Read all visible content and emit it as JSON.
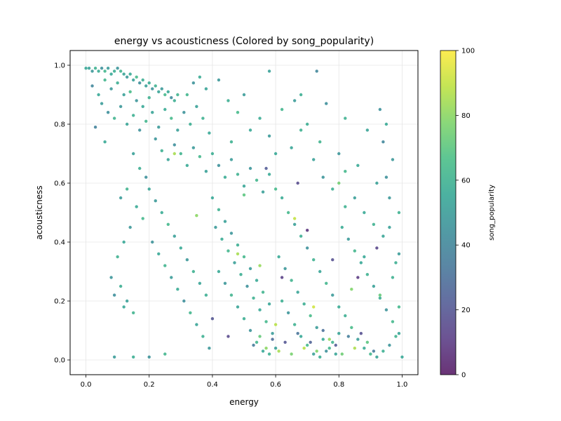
{
  "chart_data": {
    "type": "scatter",
    "title": "energy vs acousticness (Colored by song_popularity)",
    "xlabel": "energy",
    "ylabel": "acousticness",
    "xlim": [
      -0.05,
      1.05
    ],
    "ylim": [
      -0.05,
      1.05
    ],
    "xticks": [
      0.0,
      0.2,
      0.4,
      0.6,
      0.8,
      1.0
    ],
    "yticks": [
      0.0,
      0.2,
      0.4,
      0.6,
      0.8,
      1.0
    ],
    "xtick_labels": [
      "0.0",
      "0.2",
      "0.4",
      "0.6",
      "0.8",
      "1.0"
    ],
    "ytick_labels": [
      "0.0",
      "0.2",
      "0.4",
      "0.6",
      "0.8",
      "1.0"
    ],
    "grid": true,
    "colorbar": {
      "label": "song_popularity",
      "range": [
        0,
        100
      ],
      "ticks": [
        0,
        20,
        40,
        60,
        80,
        100
      ],
      "tick_labels": [
        "0",
        "20",
        "40",
        "60",
        "80",
        "100"
      ],
      "colormap": "viridis",
      "colors": [
        "#440154",
        "#482878",
        "#3e4989",
        "#31688e",
        "#26828e",
        "#1f9e89",
        "#35b779",
        "#6ece58",
        "#b5de2b",
        "#fde725"
      ]
    },
    "marker_alpha": 0.8,
    "points": [
      [
        0.0,
        0.99,
        55
      ],
      [
        0.01,
        0.99,
        52
      ],
      [
        0.02,
        0.98,
        48
      ],
      [
        0.03,
        0.99,
        60
      ],
      [
        0.04,
        0.98,
        57
      ],
      [
        0.05,
        0.99,
        45
      ],
      [
        0.06,
        0.98,
        62
      ],
      [
        0.07,
        0.99,
        50
      ],
      [
        0.08,
        0.97,
        55
      ],
      [
        0.09,
        0.98,
        58
      ],
      [
        0.1,
        0.99,
        47
      ],
      [
        0.11,
        0.98,
        61
      ],
      [
        0.12,
        0.97,
        53
      ],
      [
        0.13,
        0.96,
        49
      ],
      [
        0.14,
        0.97,
        56
      ],
      [
        0.15,
        0.95,
        52
      ],
      [
        0.16,
        0.96,
        64
      ],
      [
        0.17,
        0.94,
        44
      ],
      [
        0.18,
        0.95,
        58
      ],
      [
        0.19,
        0.93,
        51
      ],
      [
        0.2,
        0.94,
        57
      ],
      [
        0.21,
        0.92,
        46
      ],
      [
        0.22,
        0.93,
        60
      ],
      [
        0.23,
        0.91,
        53
      ],
      [
        0.24,
        0.92,
        49
      ],
      [
        0.25,
        0.9,
        63
      ],
      [
        0.26,
        0.91,
        55
      ],
      [
        0.27,
        0.89,
        42
      ],
      [
        0.28,
        0.88,
        58
      ],
      [
        0.29,
        0.9,
        61
      ],
      [
        0.02,
        0.93,
        40
      ],
      [
        0.04,
        0.9,
        55
      ],
      [
        0.06,
        0.95,
        62
      ],
      [
        0.08,
        0.92,
        48
      ],
      [
        0.1,
        0.94,
        58
      ],
      [
        0.12,
        0.9,
        52
      ],
      [
        0.14,
        0.91,
        65
      ],
      [
        0.16,
        0.88,
        47
      ],
      [
        0.18,
        0.86,
        55
      ],
      [
        0.2,
        0.89,
        60
      ],
      [
        0.05,
        0.87,
        50
      ],
      [
        0.07,
        0.84,
        44
      ],
      [
        0.03,
        0.79,
        38
      ],
      [
        0.06,
        0.74,
        56
      ],
      [
        0.09,
        0.82,
        61
      ],
      [
        0.11,
        0.86,
        48
      ],
      [
        0.13,
        0.8,
        54
      ],
      [
        0.15,
        0.83,
        59
      ],
      [
        0.17,
        0.78,
        45
      ],
      [
        0.19,
        0.81,
        62
      ],
      [
        0.21,
        0.84,
        53
      ],
      [
        0.23,
        0.79,
        49
      ],
      [
        0.25,
        0.85,
        57
      ],
      [
        0.27,
        0.82,
        64
      ],
      [
        0.29,
        0.78,
        51
      ],
      [
        0.31,
        0.84,
        46
      ],
      [
        0.33,
        0.8,
        58
      ],
      [
        0.35,
        0.86,
        52
      ],
      [
        0.37,
        0.82,
        60
      ],
      [
        0.39,
        0.77,
        55
      ],
      [
        0.22,
        0.75,
        47
      ],
      [
        0.24,
        0.71,
        59
      ],
      [
        0.26,
        0.68,
        53
      ],
      [
        0.28,
        0.73,
        44
      ],
      [
        0.3,
        0.7,
        61
      ],
      [
        0.32,
        0.66,
        56
      ],
      [
        0.34,
        0.72,
        49
      ],
      [
        0.36,
        0.69,
        63
      ],
      [
        0.38,
        0.64,
        52
      ],
      [
        0.4,
        0.7,
        58
      ],
      [
        0.42,
        0.66,
        45
      ],
      [
        0.44,
        0.62,
        57
      ],
      [
        0.46,
        0.68,
        50
      ],
      [
        0.48,
        0.63,
        60
      ],
      [
        0.5,
        0.59,
        54
      ],
      [
        0.52,
        0.65,
        47
      ],
      [
        0.54,
        0.61,
        62
      ],
      [
        0.56,
        0.57,
        51
      ],
      [
        0.58,
        0.63,
        56
      ],
      [
        0.6,
        0.58,
        64
      ],
      [
        0.15,
        0.7,
        52
      ],
      [
        0.17,
        0.65,
        58
      ],
      [
        0.19,
        0.62,
        45
      ],
      [
        0.13,
        0.58,
        61
      ],
      [
        0.11,
        0.55,
        50
      ],
      [
        0.16,
        0.52,
        56
      ],
      [
        0.18,
        0.48,
        63
      ],
      [
        0.14,
        0.45,
        48
      ],
      [
        0.12,
        0.4,
        55
      ],
      [
        0.1,
        0.35,
        60
      ],
      [
        0.08,
        0.28,
        47
      ],
      [
        0.11,
        0.25,
        58
      ],
      [
        0.13,
        0.2,
        52
      ],
      [
        0.09,
        0.22,
        44
      ],
      [
        0.15,
        0.16,
        61
      ],
      [
        0.12,
        0.18,
        55
      ],
      [
        0.09,
        0.01,
        50
      ],
      [
        0.15,
        0.01,
        58
      ],
      [
        0.2,
        0.01,
        46
      ],
      [
        0.25,
        0.02,
        62
      ],
      [
        0.2,
        0.58,
        54
      ],
      [
        0.22,
        0.54,
        49
      ],
      [
        0.24,
        0.5,
        57
      ],
      [
        0.26,
        0.46,
        63
      ],
      [
        0.28,
        0.42,
        51
      ],
      [
        0.3,
        0.38,
        56
      ],
      [
        0.32,
        0.34,
        48
      ],
      [
        0.34,
        0.3,
        60
      ],
      [
        0.36,
        0.26,
        53
      ],
      [
        0.38,
        0.22,
        58
      ],
      [
        0.21,
        0.4,
        46
      ],
      [
        0.23,
        0.36,
        55
      ],
      [
        0.25,
        0.32,
        61
      ],
      [
        0.27,
        0.28,
        50
      ],
      [
        0.29,
        0.24,
        57
      ],
      [
        0.31,
        0.2,
        44
      ],
      [
        0.33,
        0.16,
        62
      ],
      [
        0.35,
        0.12,
        53
      ],
      [
        0.37,
        0.08,
        59
      ],
      [
        0.39,
        0.04,
        48
      ],
      [
        0.4,
        0.55,
        55
      ],
      [
        0.42,
        0.51,
        60
      ],
      [
        0.44,
        0.47,
        52
      ],
      [
        0.46,
        0.43,
        47
      ],
      [
        0.48,
        0.39,
        58
      ],
      [
        0.5,
        0.35,
        63
      ],
      [
        0.52,
        0.31,
        50
      ],
      [
        0.54,
        0.27,
        56
      ],
      [
        0.56,
        0.23,
        61
      ],
      [
        0.58,
        0.19,
        54
      ],
      [
        0.41,
        0.45,
        49
      ],
      [
        0.43,
        0.41,
        57
      ],
      [
        0.45,
        0.37,
        62
      ],
      [
        0.47,
        0.33,
        51
      ],
      [
        0.49,
        0.29,
        58
      ],
      [
        0.51,
        0.25,
        45
      ],
      [
        0.53,
        0.21,
        60
      ],
      [
        0.55,
        0.17,
        55
      ],
      [
        0.57,
        0.13,
        63
      ],
      [
        0.59,
        0.09,
        50
      ],
      [
        0.42,
        0.3,
        56
      ],
      [
        0.44,
        0.26,
        48
      ],
      [
        0.46,
        0.22,
        61
      ],
      [
        0.48,
        0.18,
        53
      ],
      [
        0.5,
        0.14,
        58
      ],
      [
        0.52,
        0.1,
        46
      ],
      [
        0.54,
        0.06,
        62
      ],
      [
        0.56,
        0.03,
        55
      ],
      [
        0.58,
        0.02,
        59
      ],
      [
        0.6,
        0.04,
        52
      ],
      [
        0.62,
        0.55,
        57
      ],
      [
        0.64,
        0.5,
        63
      ],
      [
        0.66,
        0.46,
        51
      ],
      [
        0.68,
        0.42,
        58
      ],
      [
        0.7,
        0.38,
        45
      ],
      [
        0.72,
        0.34,
        60
      ],
      [
        0.74,
        0.3,
        54
      ],
      [
        0.76,
        0.26,
        62
      ],
      [
        0.78,
        0.22,
        49
      ],
      [
        0.8,
        0.18,
        57
      ],
      [
        0.61,
        0.35,
        56
      ],
      [
        0.63,
        0.31,
        48
      ],
      [
        0.65,
        0.27,
        61
      ],
      [
        0.67,
        0.23,
        53
      ],
      [
        0.69,
        0.19,
        58
      ],
      [
        0.71,
        0.15,
        65
      ],
      [
        0.73,
        0.11,
        50
      ],
      [
        0.75,
        0.07,
        56
      ],
      [
        0.77,
        0.04,
        62
      ],
      [
        0.79,
        0.02,
        54
      ],
      [
        0.62,
        0.2,
        59
      ],
      [
        0.64,
        0.16,
        47
      ],
      [
        0.66,
        0.12,
        60
      ],
      [
        0.68,
        0.08,
        55
      ],
      [
        0.7,
        0.05,
        63
      ],
      [
        0.72,
        0.02,
        51
      ],
      [
        0.74,
        0.01,
        58
      ],
      [
        0.76,
        0.03,
        45
      ],
      [
        0.78,
        0.06,
        61
      ],
      [
        0.8,
        0.09,
        53
      ],
      [
        0.81,
        0.45,
        57
      ],
      [
        0.83,
        0.41,
        49
      ],
      [
        0.85,
        0.37,
        62
      ],
      [
        0.87,
        0.33,
        55
      ],
      [
        0.89,
        0.29,
        60
      ],
      [
        0.91,
        0.25,
        52
      ],
      [
        0.93,
        0.21,
        58
      ],
      [
        0.95,
        0.17,
        46
      ],
      [
        0.97,
        0.13,
        63
      ],
      [
        0.99,
        0.09,
        54
      ],
      [
        0.82,
        0.15,
        58
      ],
      [
        0.84,
        0.11,
        65
      ],
      [
        0.86,
        0.07,
        50
      ],
      [
        0.88,
        0.04,
        57
      ],
      [
        0.9,
        0.02,
        62
      ],
      [
        0.92,
        0.01,
        53
      ],
      [
        0.94,
        0.03,
        59
      ],
      [
        0.96,
        0.05,
        47
      ],
      [
        0.98,
        0.08,
        61
      ],
      [
        1.0,
        0.01,
        55
      ],
      [
        0.65,
        0.72,
        54
      ],
      [
        0.68,
        0.78,
        60
      ],
      [
        0.72,
        0.68,
        52
      ],
      [
        0.75,
        0.62,
        47
      ],
      [
        0.78,
        0.58,
        58
      ],
      [
        0.82,
        0.64,
        63
      ],
      [
        0.85,
        0.55,
        51
      ],
      [
        0.88,
        0.5,
        56
      ],
      [
        0.91,
        0.46,
        60
      ],
      [
        0.94,
        0.42,
        54
      ],
      [
        0.55,
        0.82,
        57
      ],
      [
        0.58,
        0.76,
        49
      ],
      [
        0.62,
        0.85,
        62
      ],
      [
        0.6,
        0.7,
        55
      ],
      [
        0.66,
        0.88,
        50
      ],
      [
        0.7,
        0.8,
        58
      ],
      [
        0.74,
        0.74,
        61
      ],
      [
        0.8,
        0.7,
        47
      ],
      [
        0.86,
        0.66,
        56
      ],
      [
        0.92,
        0.6,
        52
      ],
      [
        0.45,
        0.88,
        58
      ],
      [
        0.48,
        0.84,
        64
      ],
      [
        0.5,
        0.9,
        50
      ],
      [
        0.52,
        0.78,
        55
      ],
      [
        0.46,
        0.74,
        60
      ],
      [
        0.38,
        0.92,
        53
      ],
      [
        0.42,
        0.95,
        48
      ],
      [
        0.36,
        0.96,
        57
      ],
      [
        0.32,
        0.9,
        62
      ],
      [
        0.34,
        0.94,
        46
      ],
      [
        0.73,
        0.98,
        40
      ],
      [
        0.58,
        0.98,
        52
      ],
      [
        0.68,
        0.9,
        58
      ],
      [
        0.76,
        0.87,
        44
      ],
      [
        0.82,
        0.82,
        60
      ],
      [
        0.89,
        0.78,
        53
      ],
      [
        0.93,
        0.85,
        45
      ],
      [
        0.95,
        0.8,
        56
      ],
      [
        0.97,
        0.68,
        48
      ],
      [
        0.99,
        0.5,
        60
      ],
      [
        0.53,
        0.05,
        35
      ],
      [
        0.55,
        0.08,
        72
      ],
      [
        0.57,
        0.04,
        80
      ],
      [
        0.59,
        0.07,
        28
      ],
      [
        0.61,
        0.03,
        85
      ],
      [
        0.63,
        0.06,
        20
      ],
      [
        0.65,
        0.02,
        76
      ],
      [
        0.67,
        0.09,
        32
      ],
      [
        0.69,
        0.04,
        88
      ],
      [
        0.71,
        0.06,
        25
      ],
      [
        0.73,
        0.03,
        78
      ],
      [
        0.75,
        0.1,
        30
      ],
      [
        0.77,
        0.07,
        82
      ],
      [
        0.79,
        0.05,
        22
      ],
      [
        0.81,
        0.02,
        74
      ],
      [
        0.83,
        0.08,
        36
      ],
      [
        0.85,
        0.04,
        86
      ],
      [
        0.87,
        0.09,
        18
      ],
      [
        0.89,
        0.06,
        70
      ],
      [
        0.91,
        0.03,
        34
      ],
      [
        0.66,
        0.48,
        90
      ],
      [
        0.72,
        0.18,
        92
      ],
      [
        0.8,
        0.6,
        75
      ],
      [
        0.55,
        0.32,
        82
      ],
      [
        0.6,
        0.12,
        88
      ],
      [
        0.84,
        0.24,
        78
      ],
      [
        0.48,
        0.36,
        85
      ],
      [
        0.35,
        0.49,
        80
      ],
      [
        0.5,
        0.56,
        70
      ],
      [
        0.93,
        0.22,
        72
      ],
      [
        0.28,
        0.7,
        85
      ],
      [
        0.4,
        0.14,
        20
      ],
      [
        0.45,
        0.08,
        15
      ],
      [
        0.62,
        0.28,
        12
      ],
      [
        0.7,
        0.44,
        8
      ],
      [
        0.78,
        0.34,
        18
      ],
      [
        0.86,
        0.28,
        10
      ],
      [
        0.92,
        0.38,
        14
      ],
      [
        0.57,
        0.65,
        22
      ],
      [
        0.67,
        0.6,
        16
      ],
      [
        0.97,
        0.28,
        60
      ],
      [
        0.96,
        0.45,
        52
      ],
      [
        0.95,
        0.62,
        45
      ],
      [
        0.98,
        0.33,
        58
      ],
      [
        0.99,
        0.18,
        63
      ],
      [
        0.99,
        0.36,
        50
      ],
      [
        0.94,
        0.74,
        40
      ],
      [
        0.96,
        0.55,
        48
      ],
      [
        0.88,
        0.35,
        55
      ],
      [
        0.82,
        0.52,
        60
      ]
    ]
  }
}
